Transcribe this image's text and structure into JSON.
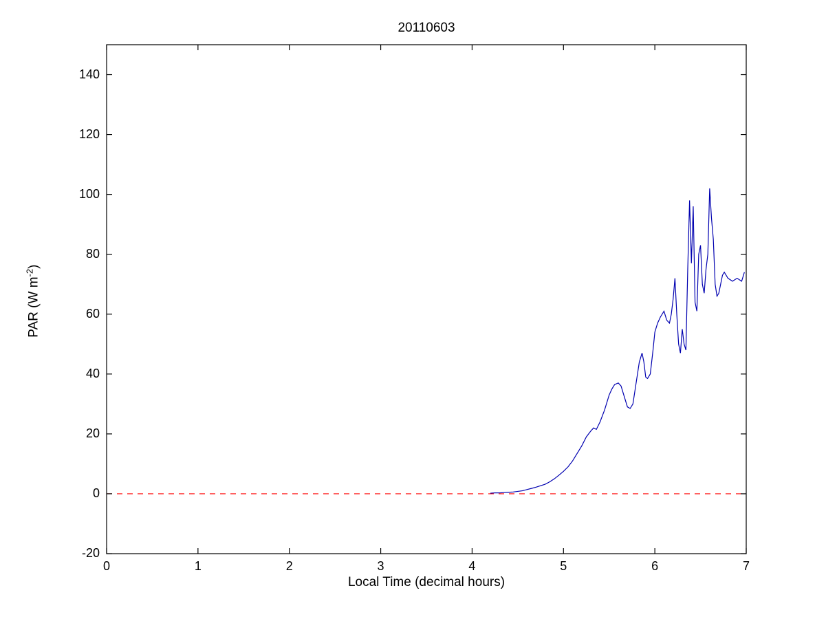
{
  "chart_data": {
    "type": "line",
    "title": "20110603",
    "xlabel": "Local Time (decimal hours)",
    "ylabel": "PAR (W m-2)",
    "ylabel_parts": {
      "prefix": "PAR (W m",
      "sup": "-2",
      "suffix": ")"
    },
    "xlim": [
      0,
      7
    ],
    "ylim": [
      -20,
      150
    ],
    "xticks": [
      0,
      1,
      2,
      3,
      4,
      5,
      6,
      7
    ],
    "yticks": [
      -20,
      0,
      20,
      40,
      60,
      80,
      100,
      120,
      140
    ],
    "grid": false,
    "legend_position": "none",
    "axis_color": "#000000",
    "series": [
      {
        "name": "zero-reference-line",
        "color": "#ff0000",
        "style": "dashed",
        "points": [
          [
            0,
            0
          ],
          [
            7,
            0
          ]
        ]
      },
      {
        "name": "par-measurement",
        "color": "#0000b0",
        "style": "solid",
        "points": [
          [
            4.2,
            0.2
          ],
          [
            4.25,
            0.3
          ],
          [
            4.3,
            0.3
          ],
          [
            4.35,
            0.4
          ],
          [
            4.4,
            0.5
          ],
          [
            4.45,
            0.6
          ],
          [
            4.5,
            0.8
          ],
          [
            4.55,
            1.0
          ],
          [
            4.6,
            1.4
          ],
          [
            4.65,
            1.8
          ],
          [
            4.7,
            2.2
          ],
          [
            4.75,
            2.7
          ],
          [
            4.8,
            3.2
          ],
          [
            4.85,
            4.0
          ],
          [
            4.9,
            5.0
          ],
          [
            4.95,
            6.2
          ],
          [
            5.0,
            7.5
          ],
          [
            5.05,
            9.0
          ],
          [
            5.1,
            11.0
          ],
          [
            5.15,
            13.5
          ],
          [
            5.2,
            16.0
          ],
          [
            5.25,
            19.0
          ],
          [
            5.3,
            21.0
          ],
          [
            5.33,
            22.0
          ],
          [
            5.36,
            21.5
          ],
          [
            5.4,
            24.0
          ],
          [
            5.45,
            28.0
          ],
          [
            5.5,
            33.0
          ],
          [
            5.53,
            35.0
          ],
          [
            5.56,
            36.5
          ],
          [
            5.6,
            37.0
          ],
          [
            5.63,
            36.0
          ],
          [
            5.66,
            33.0
          ],
          [
            5.7,
            29.0
          ],
          [
            5.73,
            28.5
          ],
          [
            5.76,
            30.0
          ],
          [
            5.8,
            38.0
          ],
          [
            5.83,
            44.0
          ],
          [
            5.86,
            47.0
          ],
          [
            5.88,
            44.0
          ],
          [
            5.9,
            39.0
          ],
          [
            5.92,
            38.5
          ],
          [
            5.95,
            40.0
          ],
          [
            5.98,
            48.0
          ],
          [
            6.0,
            54.0
          ],
          [
            6.03,
            57.0
          ],
          [
            6.06,
            59.0
          ],
          [
            6.1,
            61.0
          ],
          [
            6.13,
            58.0
          ],
          [
            6.16,
            57.0
          ],
          [
            6.18,
            60.0
          ],
          [
            6.2,
            65.0
          ],
          [
            6.22,
            72.0
          ],
          [
            6.24,
            60.0
          ],
          [
            6.26,
            50.0
          ],
          [
            6.28,
            47.0
          ],
          [
            6.3,
            55.0
          ],
          [
            6.32,
            50.0
          ],
          [
            6.34,
            48.0
          ],
          [
            6.36,
            75.0
          ],
          [
            6.38,
            98.0
          ],
          [
            6.4,
            77.0
          ],
          [
            6.42,
            96.0
          ],
          [
            6.44,
            64.0
          ],
          [
            6.46,
            61.0
          ],
          [
            6.48,
            80.0
          ],
          [
            6.5,
            83.0
          ],
          [
            6.52,
            70.0
          ],
          [
            6.54,
            67.0
          ],
          [
            6.56,
            75.0
          ],
          [
            6.58,
            80.0
          ],
          [
            6.6,
            102.0
          ],
          [
            6.62,
            92.0
          ],
          [
            6.64,
            85.0
          ],
          [
            6.66,
            70.0
          ],
          [
            6.68,
            66.0
          ],
          [
            6.7,
            67.0
          ],
          [
            6.72,
            70.0
          ],
          [
            6.74,
            73.0
          ],
          [
            6.76,
            74.0
          ],
          [
            6.8,
            72.0
          ],
          [
            6.85,
            71.0
          ],
          [
            6.9,
            72.0
          ],
          [
            6.95,
            71.0
          ],
          [
            6.98,
            74.0
          ]
        ]
      }
    ]
  }
}
